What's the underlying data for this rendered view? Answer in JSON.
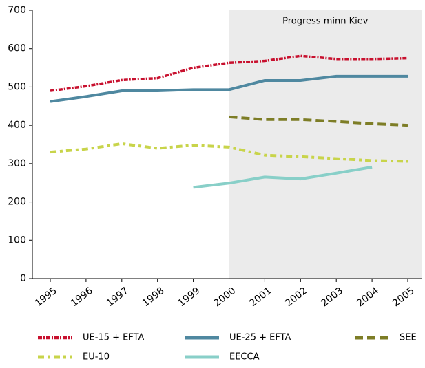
{
  "chart_data": {
    "type": "line",
    "x": [
      1995,
      1996,
      1997,
      1998,
      1999,
      2000,
      2001,
      2002,
      2003,
      2004,
      2005
    ],
    "xlim": [
      1995,
      2005
    ],
    "xticks": [
      1995,
      1996,
      1997,
      1998,
      1999,
      2000,
      2001,
      2002,
      2003,
      2004,
      2005
    ],
    "ylim": [
      0,
      700
    ],
    "yticks": [
      0,
      100,
      200,
      300,
      400,
      500,
      600,
      700
    ],
    "grid": false,
    "annotation": {
      "text": "Progress minn Kiev",
      "x_from": 2000,
      "shade": "#ebebeb"
    },
    "series": [
      {
        "name": "UE-15 + EFTA",
        "color": "#c8102e",
        "style": "dashdot",
        "values": [
          490,
          502,
          518,
          523,
          550,
          563,
          568,
          581,
          573,
          573,
          575
        ]
      },
      {
        "name": "UE-25 + EFTA",
        "color": "#4f88a0",
        "style": "solid",
        "values": [
          462,
          475,
          490,
          490,
          493,
          493,
          517,
          517,
          528,
          528,
          528
        ]
      },
      {
        "name": "SEE",
        "color": "#7d7d26",
        "style": "dashed",
        "values": [
          null,
          null,
          null,
          null,
          null,
          422,
          415,
          415,
          410,
          404,
          400
        ]
      },
      {
        "name": "EU-10",
        "color": "#c8d44a",
        "style": "dashdot2",
        "values": [
          330,
          338,
          352,
          340,
          348,
          343,
          322,
          318,
          313,
          308,
          306
        ]
      },
      {
        "name": "EECCA",
        "color": "#88cfc8",
        "style": "solid",
        "values": [
          null,
          null,
          null,
          null,
          238,
          249,
          265,
          260,
          275,
          291,
          null
        ]
      }
    ]
  }
}
